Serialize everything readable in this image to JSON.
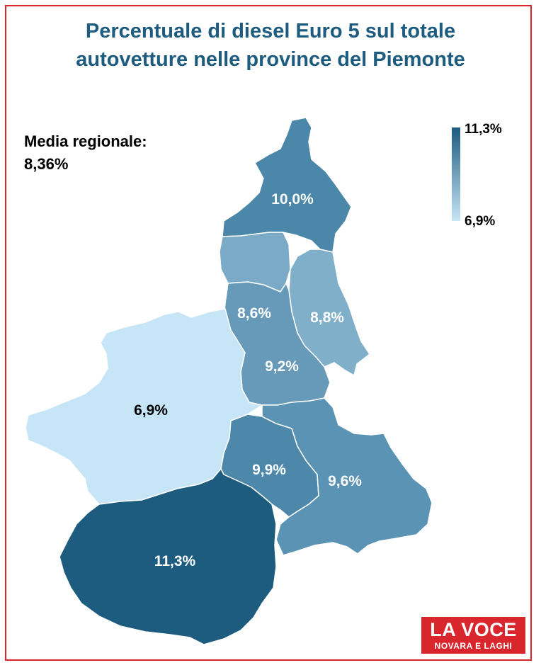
{
  "title_line1": "Percentuale di diesel Euro 5 sul totale",
  "title_line2": "autovetture nelle province del Piemonte",
  "average_label": "Media regionale:",
  "average_value": "8,36%",
  "legend": {
    "max_label": "11,3%",
    "min_label": "6,9%",
    "color_max": "#1d5b7f",
    "color_min": "#c6e5f6"
  },
  "provinces": [
    {
      "label": "10,0%",
      "value": 10.0,
      "color": "#4a87a8",
      "label_color": "#ffffff"
    },
    {
      "label": "8,6%",
      "value": 8.6,
      "color": "#7aaac6",
      "label_color": "#ffffff"
    },
    {
      "label": "8,8%",
      "value": 8.8,
      "color": "#80afca",
      "label_color": "#ffffff"
    },
    {
      "label": "9,2%",
      "value": 9.2,
      "color": "#6799b8",
      "label_color": "#ffffff"
    },
    {
      "label": "6,9%",
      "value": 6.9,
      "color": "#c6e5f6",
      "label_color": "#000000"
    },
    {
      "label": "9,9%",
      "value": 9.9,
      "color": "#4d88aa",
      "label_color": "#ffffff"
    },
    {
      "label": "9,6%",
      "value": 9.6,
      "color": "#5a93b4",
      "label_color": "#ffffff"
    },
    {
      "label": "11,3%",
      "value": 11.3,
      "color": "#1d5b7f",
      "label_color": "#ffffff"
    }
  ],
  "logo": {
    "line1": "LA VOCE",
    "line2": "NOVARA E LAGHI",
    "color": "#d9262c"
  }
}
